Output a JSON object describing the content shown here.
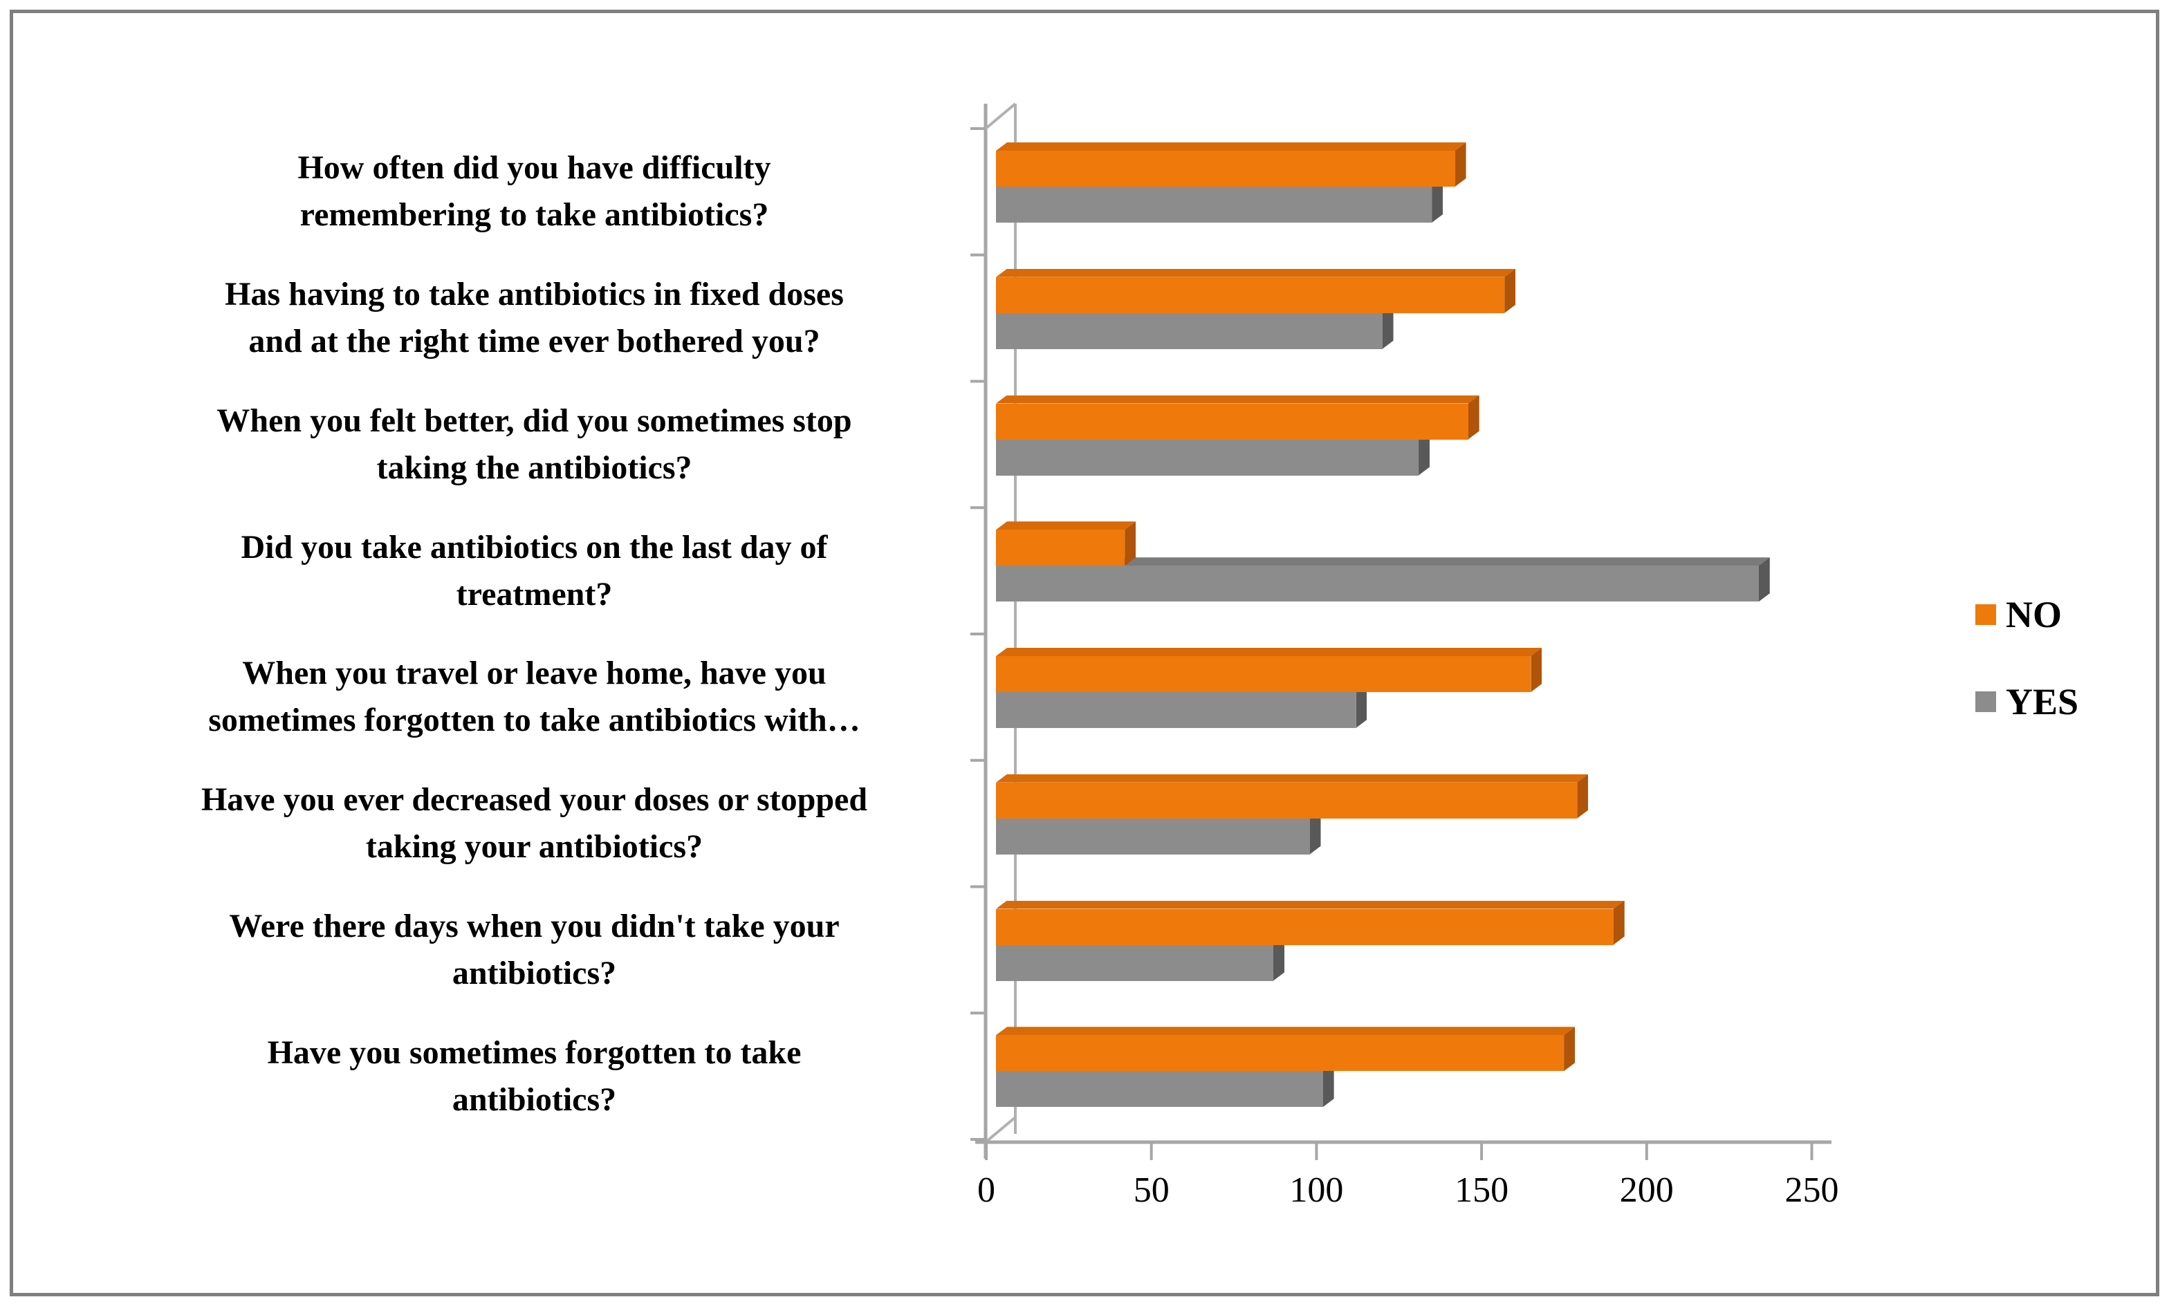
{
  "chart_data": {
    "type": "bar",
    "orientation": "horizontal",
    "effect": "3d",
    "title": "",
    "xlabel": "",
    "ylabel": "",
    "xlim": [
      0,
      250
    ],
    "x_ticks": [
      0,
      50,
      100,
      150,
      200,
      250
    ],
    "grid": false,
    "legend_position": "right",
    "categories": [
      [
        "How often did you have difficulty",
        "remembering to take antibiotics?"
      ],
      [
        "Has having to take antibiotics in fixed doses",
        "and at the right time ever bothered you?"
      ],
      [
        "When you felt better, did you sometimes stop",
        "taking the antibiotics?"
      ],
      [
        "Did you take antibiotics on the last day of",
        "treatment?"
      ],
      [
        "When you travel or leave home, have you",
        "sometimes forgotten to take antibiotics with…"
      ],
      [
        "Have you ever decreased your doses or stopped",
        "taking your antibiotics?"
      ],
      [
        "Were there days when you didn't take your",
        "antibiotics?"
      ],
      [
        "Have you sometimes forgotten to take",
        "antibiotics?"
      ]
    ],
    "series": [
      {
        "name": "NO",
        "color": "#F0790B",
        "color_top": "#D86A08",
        "color_side": "#AF5408",
        "values": [
          139,
          154,
          143,
          39,
          162,
          176,
          187,
          172
        ]
      },
      {
        "name": "YES",
        "color": "#8C8C8C",
        "color_top": "#7B7B7B",
        "color_side": "#595959",
        "values": [
          132,
          117,
          128,
          231,
          109,
          95,
          84,
          99
        ]
      }
    ]
  },
  "legend": {
    "items": [
      {
        "label": "NO",
        "color": "#F0790B"
      },
      {
        "label": "YES",
        "color": "#8C8C8C"
      }
    ]
  }
}
